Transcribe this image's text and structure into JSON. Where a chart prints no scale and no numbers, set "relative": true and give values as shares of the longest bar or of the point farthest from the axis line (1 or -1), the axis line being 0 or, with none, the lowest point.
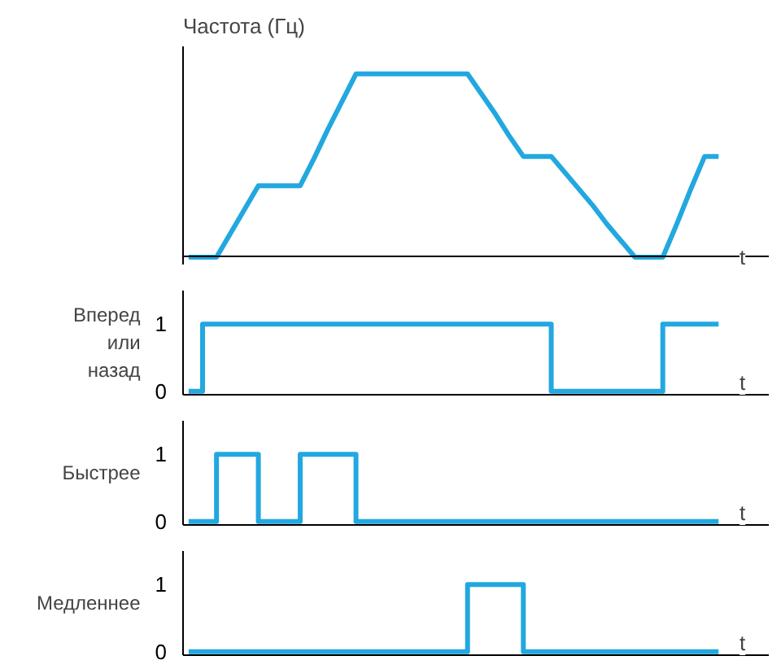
{
  "chart_data": [
    {
      "type": "line",
      "relative": true,
      "ylabel": "Частота (Гц)",
      "xlabel": "t",
      "grid": false,
      "tick_labels": false,
      "categories": [
        null,
        null,
        null,
        null,
        null,
        null,
        null,
        null,
        null,
        null,
        null,
        null,
        null,
        null,
        null,
        null,
        null,
        null,
        null,
        null,
        null,
        null,
        null,
        null,
        null,
        null,
        null,
        null,
        null,
        null,
        null,
        null,
        null,
        null,
        null,
        null,
        null,
        null,
        null
      ],
      "series": [
        {
          "color": "#22a8df",
          "values": [
            0,
            0,
            0,
            0.13,
            0.26,
            0.39,
            0.39,
            0.39,
            0.39,
            0.54,
            0.7,
            0.85,
            1,
            1,
            1,
            1,
            1,
            1,
            1,
            1,
            1,
            0.89,
            0.78,
            0.66,
            0.55,
            0.55,
            0.55,
            0.46,
            0.37,
            0.28,
            0.18,
            0.09,
            0,
            0,
            0,
            0.18,
            0.37,
            0.55,
            0.55
          ]
        }
      ]
    },
    {
      "type": "step",
      "ylabel": "Вперед\nили\nназад",
      "xlabel": "t",
      "grid": false,
      "tick_labels": "y",
      "ylim": [
        -0.05,
        1.5
      ],
      "yticks": [
        0,
        1
      ],
      "categories": [
        null,
        null,
        null,
        null,
        null,
        null,
        null,
        null,
        null,
        null,
        null,
        null,
        null,
        null,
        null,
        null,
        null,
        null,
        null,
        null,
        null,
        null,
        null,
        null,
        null,
        null,
        null,
        null,
        null,
        null,
        null,
        null,
        null,
        null,
        null,
        null,
        null,
        null,
        null
      ],
      "series": [
        {
          "color": "#22a8df",
          "values": [
            0,
            1,
            1,
            1,
            1,
            1,
            1,
            1,
            1,
            1,
            1,
            1,
            1,
            1,
            1,
            1,
            1,
            1,
            1,
            1,
            1,
            1,
            1,
            1,
            1,
            1,
            0,
            0,
            0,
            0,
            0,
            0,
            0,
            0,
            1,
            1,
            1,
            1,
            1
          ]
        }
      ]
    },
    {
      "type": "step",
      "ylabel": "Быстрее",
      "xlabel": "t",
      "grid": false,
      "tick_labels": "y",
      "ylim": [
        -0.05,
        1.5
      ],
      "yticks": [
        0,
        1
      ],
      "categories": [
        null,
        null,
        null,
        null,
        null,
        null,
        null,
        null,
        null,
        null,
        null,
        null,
        null,
        null,
        null,
        null,
        null,
        null,
        null,
        null,
        null,
        null,
        null,
        null,
        null,
        null,
        null,
        null,
        null,
        null,
        null,
        null,
        null,
        null,
        null,
        null,
        null,
        null,
        null
      ],
      "series": [
        {
          "color": "#22a8df",
          "values": [
            0,
            0,
            1,
            1,
            1,
            0,
            0,
            0,
            1,
            1,
            1,
            1,
            0,
            0,
            0,
            0,
            0,
            0,
            0,
            0,
            0,
            0,
            0,
            0,
            0,
            0,
            0,
            0,
            0,
            0,
            0,
            0,
            0,
            0,
            0,
            0,
            0,
            0,
            0
          ]
        }
      ]
    },
    {
      "type": "step",
      "ylabel": "Медленнее",
      "xlabel": "t",
      "grid": false,
      "tick_labels": "y",
      "ylim": [
        -0.05,
        1.5
      ],
      "yticks": [
        0,
        1
      ],
      "categories": [
        null,
        null,
        null,
        null,
        null,
        null,
        null,
        null,
        null,
        null,
        null,
        null,
        null,
        null,
        null,
        null,
        null,
        null,
        null,
        null,
        null,
        null,
        null,
        null,
        null,
        null,
        null,
        null,
        null,
        null,
        null,
        null,
        null,
        null,
        null,
        null,
        null,
        null,
        null
      ],
      "series": [
        {
          "color": "#22a8df",
          "values": [
            0,
            0,
            0,
            0,
            0,
            0,
            0,
            0,
            0,
            0,
            0,
            0,
            0,
            0,
            0,
            0,
            0,
            0,
            0,
            0,
            1,
            1,
            1,
            1,
            0,
            0,
            0,
            0,
            0,
            0,
            0,
            0,
            0,
            0,
            0,
            0,
            0,
            0,
            0
          ]
        }
      ]
    }
  ]
}
